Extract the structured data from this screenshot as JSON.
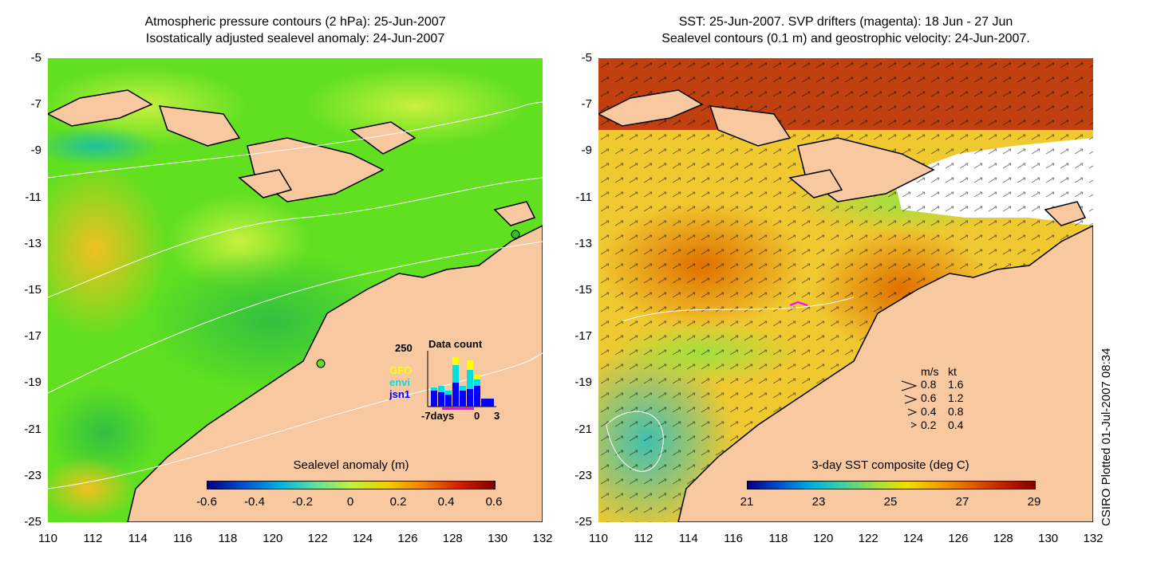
{
  "left": {
    "title_line1": "Atmospheric pressure contours (2 hPa): 25-Jun-2007",
    "title_line2": "Isostatically adjusted sealevel anomaly: 24-Jun-2007",
    "colorbar_title": "Sealevel anomaly (m)",
    "colorbar_ticks": [
      "-0.6",
      "-0.4",
      "-0.2",
      "0",
      "0.2",
      "0.4",
      "0.6"
    ],
    "colorbar_colors": [
      "#000080",
      "#0050d0",
      "#00b0e0",
      "#60e0a0",
      "#c0f040",
      "#f0d000",
      "#f08000",
      "#d02000",
      "#800000"
    ],
    "inset": {
      "ymax_label": "250",
      "title": "Data count",
      "legend": [
        {
          "label": "GFO",
          "color": "#ffff00"
        },
        {
          "label": "envi",
          "color": "#00e0e0"
        },
        {
          "label": "jsn1",
          "color": "#0000ff"
        }
      ],
      "x_labels": [
        "-7days",
        "0",
        "3"
      ]
    }
  },
  "right": {
    "title_line1": "SST: 25-Jun-2007. SVP drifters (magenta): 18 Jun - 27 Jun",
    "title_line2": "Sealevel contours (0.1 m) and geostrophic velocity: 24-Jun-2007.",
    "colorbar_title": "3-day SST composite (deg C)",
    "colorbar_ticks": [
      "21",
      "23",
      "25",
      "27",
      "29"
    ],
    "colorbar_colors": [
      "#000080",
      "#0050d0",
      "#00b0e0",
      "#40d0a0",
      "#a0e040",
      "#f0e000",
      "#f0a000",
      "#e06000",
      "#c02000",
      "#800000"
    ],
    "velocity_legend": {
      "headers": [
        "m/s",
        "kt"
      ],
      "rows": [
        {
          "ms": "0.8",
          "kt": "1.6"
        },
        {
          "ms": "0.6",
          "kt": "1.2"
        },
        {
          "ms": "0.4",
          "kt": "0.8"
        },
        {
          "ms": "0.2",
          "kt": "0.4"
        }
      ]
    }
  },
  "axes": {
    "y_ticks": [
      "-5",
      "-7",
      "-9",
      "-11",
      "-13",
      "-15",
      "-17",
      "-19",
      "-21",
      "-23",
      "-25"
    ],
    "x_ticks": [
      "110",
      "112",
      "114",
      "116",
      "118",
      "120",
      "122",
      "124",
      "126",
      "128",
      "130",
      "132"
    ]
  },
  "credit": "CSIRO Plotted 01-Jul-2007 08:34",
  "colors": {
    "land": "#f8c8a0",
    "ocean_sla": "#60e020",
    "ocean_sst": "#f0c830"
  }
}
